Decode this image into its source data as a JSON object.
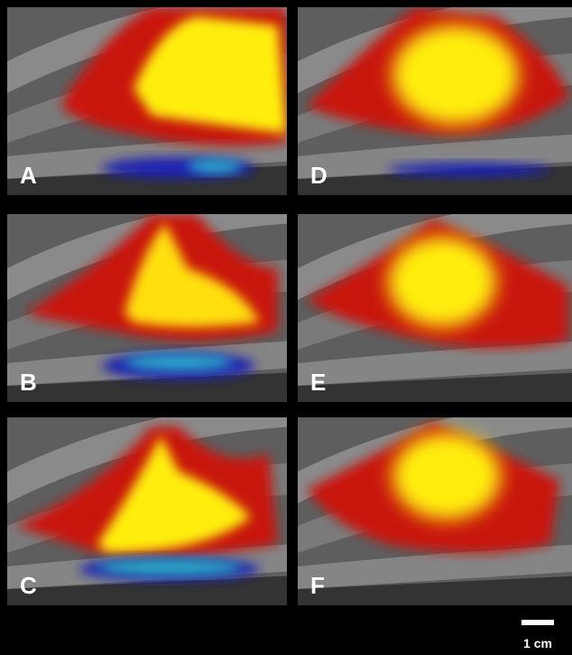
{
  "panels": [
    {
      "label": "A"
    },
    {
      "label": "B"
    },
    {
      "label": "C"
    },
    {
      "label": "D"
    },
    {
      "label": "E"
    },
    {
      "label": "F"
    }
  ],
  "scale_bar": {
    "label": "1 cm"
  }
}
